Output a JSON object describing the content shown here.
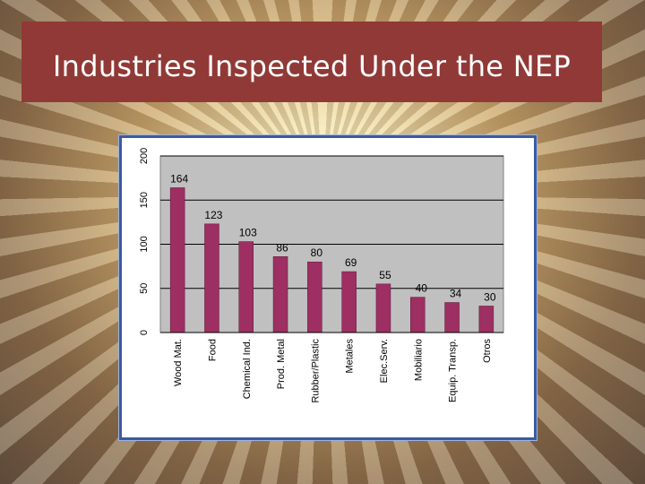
{
  "title": "Industries Inspected Under the NEP",
  "colors": {
    "bar": "#9e2f62",
    "plot_bg": "#c0c0c0",
    "title_bar": "#913936",
    "frame": "#3c5aa0"
  },
  "chart_data": {
    "type": "bar",
    "categories": [
      "Wood Mat.",
      "Food",
      "Chemical Ind.",
      "Prod. Metal",
      "Rubber/Plastic",
      "Metales",
      "Elec.Serv.",
      "Mobiliario",
      "Equip. Transp.",
      "Otros"
    ],
    "values": [
      164,
      123,
      103,
      86,
      80,
      69,
      55,
      40,
      34,
      30
    ],
    "data_labels": [
      "164",
      "123",
      "103",
      "86",
      "80",
      "69",
      "55",
      "40",
      "34",
      "30"
    ],
    "y_ticks": [
      "0",
      "50",
      "100",
      "150",
      "200"
    ],
    "ylim": [
      0,
      200
    ],
    "grid": true,
    "legend": "none"
  }
}
